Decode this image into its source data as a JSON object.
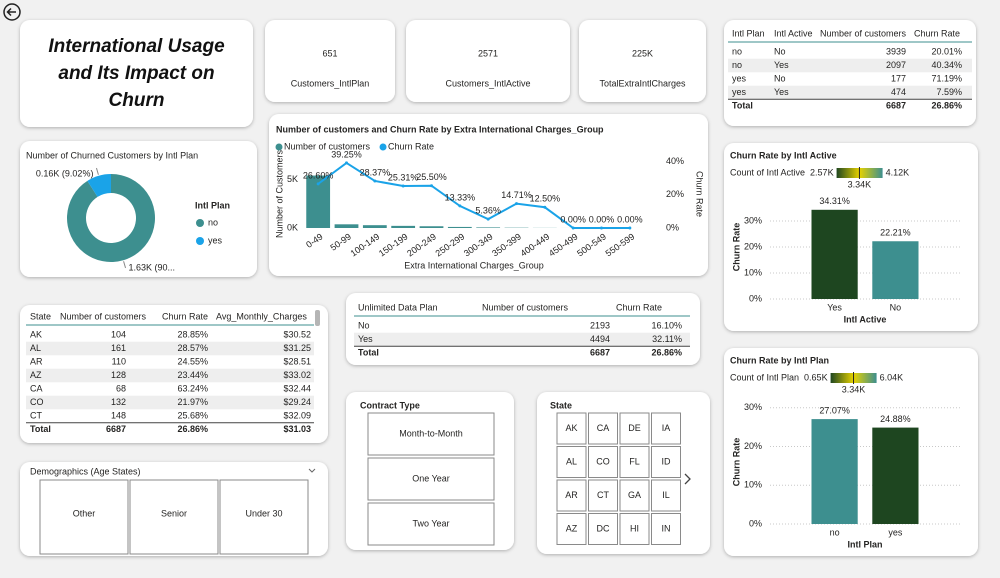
{
  "title": "International Usage and Its Impact on Churn",
  "cards": [
    {
      "value": 651,
      "label": "Customers_IntlPlan"
    },
    {
      "value": 2571,
      "label": "Customers_IntlActive"
    },
    {
      "value": "225K",
      "label": "TotalExtraIntlCharges"
    }
  ],
  "tables": [
    {
      "headers": [
        "Intl Plan",
        "Intl Active",
        "Number of customers",
        "Churn Rate"
      ],
      "rows": [
        [
          "no",
          "No",
          3939,
          "20.01%"
        ],
        [
          "no",
          "Yes",
          2097,
          "40.34%"
        ],
        [
          "yes",
          "No",
          177,
          "71.19%"
        ],
        [
          "yes",
          "Yes",
          474,
          "7.59%"
        ],
        [
          "Total",
          null,
          6687,
          "26.86%"
        ]
      ],
      "highlight_column": 3,
      "value_colors": [
        "#8fa800",
        "#e08a00",
        "#e0201b",
        "#3c9a1a",
        "#252423"
      ]
    },
    {
      "headers": [
        "State",
        "Number of customers",
        "Churn Rate",
        "Avg_Monthly_Charges"
      ],
      "rows": [
        [
          "AK",
          104,
          "28.85%",
          "$30.52"
        ],
        [
          "AL",
          161,
          "28.57%",
          "$31.25"
        ],
        [
          "AR",
          110,
          "24.55%",
          "$28.51"
        ],
        [
          "AZ",
          128,
          "23.44%",
          "$33.02"
        ],
        [
          "CA",
          68,
          "63.24%",
          "$32.44"
        ],
        [
          "CO",
          132,
          "21.97%",
          "$29.24"
        ],
        [
          "CT",
          148,
          "25.68%",
          "$32.09"
        ],
        [
          "Total",
          6687,
          "26.86%",
          "$31.03"
        ]
      ],
      "highlight_column": 3,
      "value_colors": [
        "#c8b400",
        "#d6a400",
        "#7cb200",
        "#e05a00",
        "#e08a00",
        "#9ab800",
        "#e07000",
        "#252423"
      ]
    },
    {
      "headers": [
        "Unlimited Data Plan",
        "Number of customers",
        "Churn Rate"
      ],
      "rows": [
        [
          "No",
          2193,
          "16.10%"
        ],
        [
          "Yes",
          4494,
          "32.11%"
        ],
        [
          "Total",
          6687,
          "26.86%"
        ]
      ],
      "highlight_column": 2,
      "value_colors": [
        "#2a9a2a",
        "#e0201b",
        "#252423"
      ]
    }
  ],
  "slicers": [
    {
      "title": "Contract Type",
      "items": [
        "Month-to-Month",
        "One Year",
        "Two Year"
      ]
    },
    {
      "title": "State",
      "items": [
        "AK",
        "CA",
        "DE",
        "IA",
        "AL",
        "CO",
        "FL",
        "ID",
        "AR",
        "CT",
        "GA",
        "IL",
        "AZ",
        "DC",
        "HI",
        "IN"
      ]
    },
    {
      "title": "Demographics (Age States)",
      "items": [
        "Other",
        "Senior",
        "Under 30"
      ]
    }
  ],
  "chart_data": [
    {
      "type": "pie",
      "donut": true,
      "title": "Number of Churned Customers by Intl Plan",
      "legend_title": "Intl Plan",
      "categories": [
        "no",
        "yes"
      ],
      "values": [
        1634,
        162
      ],
      "value_labels": [
        "1.63K (90...",
        "0.16K (9.02%)"
      ],
      "colors": [
        "#3d8f8f",
        "#1aa3e8"
      ]
    },
    {
      "type": "combo",
      "title": "Number of customers and Churn Rate by Extra International Charges_Group",
      "x_label": "Extra International Charges_Group",
      "y_label": "Number of Customers",
      "y2_label": "Churn Rate",
      "categories": [
        "0-49",
        "50-99",
        "100-149",
        "150-199",
        "200-249",
        "250-299",
        "300-349",
        "350-399",
        "400-449",
        "450-499",
        "500-549",
        "550-599"
      ],
      "series": [
        {
          "name": "Number of customers",
          "color": "#3d8f8f",
          "values": [
            5400,
            380,
            290,
            220,
            180,
            110,
            60,
            30,
            12,
            3,
            1,
            1
          ]
        },
        {
          "name": "Churn Rate",
          "color": "#1aa3e8",
          "axis": "y2",
          "values": [
            26.6,
            39.25,
            28.37,
            25.31,
            25.5,
            13.33,
            5.36,
            14.71,
            12.5,
            0,
            0,
            0
          ],
          "value_labels": [
            "26.60%",
            "39.25%",
            "28.37%",
            "25.31%",
            "25.50%",
            "13.33%",
            "5.36%",
            "14.71%",
            "12.50%",
            "0.00%",
            "0.00%",
            "0.00%"
          ]
        }
      ],
      "ylim": [
        0,
        7000
      ],
      "yticks": [
        {
          "value": 0,
          "label": "0K"
        },
        {
          "value": 5000,
          "label": "5K"
        }
      ],
      "y2lim": [
        0,
        41
      ],
      "y2ticks": [
        {
          "value": 0,
          "label": "0%"
        },
        {
          "value": 20,
          "label": "20%"
        },
        {
          "value": 40,
          "label": "40%"
        }
      ],
      "grid": false
    },
    {
      "type": "bar",
      "title": "Churn Rate by Intl Active",
      "x_label": "Intl Active",
      "y_label": "Churn Rate",
      "categories": [
        "Yes",
        "No"
      ],
      "values": [
        34.31,
        22.21
      ],
      "value_labels": [
        "34.31%",
        "22.21%"
      ],
      "colors": [
        "#1e4620",
        "#3d8f8f"
      ],
      "ylim": [
        0,
        40
      ],
      "yticks": [
        {
          "value": 0,
          "label": "0%"
        },
        {
          "value": 10,
          "label": "10%"
        },
        {
          "value": 20,
          "label": "20%"
        },
        {
          "value": 30,
          "label": "30%"
        }
      ],
      "grid": true,
      "color_scale": {
        "title": "Count of Intl Active",
        "min": {
          "value": 2570,
          "label": "2.57K"
        },
        "mid": {
          "value": 3340,
          "label": "3.34K"
        },
        "max": {
          "value": 4120,
          "label": "4.12K"
        },
        "colors": [
          "#1e4620",
          "#e6d200",
          "#3d8f8f"
        ]
      }
    },
    {
      "type": "bar",
      "title": "Churn Rate by Intl Plan",
      "x_label": "Intl Plan",
      "y_label": "Churn Rate",
      "categories": [
        "no",
        "yes"
      ],
      "values": [
        27.07,
        24.88
      ],
      "value_labels": [
        "27.07%",
        "24.88%"
      ],
      "colors": [
        "#3d8f8f",
        "#1e4620"
      ],
      "ylim": [
        0,
        32
      ],
      "yticks": [
        {
          "value": 0,
          "label": "0%"
        },
        {
          "value": 10,
          "label": "10%"
        },
        {
          "value": 20,
          "label": "20%"
        },
        {
          "value": 30,
          "label": "30%"
        }
      ],
      "grid": true,
      "color_scale": {
        "title": "Count of Intl Plan",
        "min": {
          "value": 650,
          "label": "0.65K"
        },
        "mid": {
          "value": 3340,
          "label": "3.34K"
        },
        "max": {
          "value": 6040,
          "label": "6.04K"
        },
        "colors": [
          "#1e4620",
          "#e6d200",
          "#3d8f8f"
        ]
      }
    }
  ]
}
